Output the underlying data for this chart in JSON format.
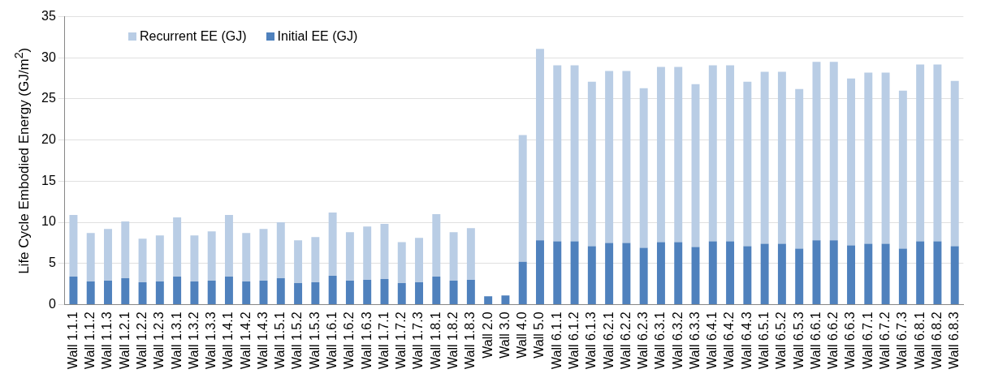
{
  "chart_data": {
    "type": "bar",
    "stacked": true,
    "ylabel": "Life Cycle Embodied Energy (GJ/m$^{2}$)",
    "categories": [
      "Wall 1.1.1",
      "Wall 1.1.2",
      "Wall 1.1.3",
      "Wall 1.2.1",
      "Wall 1.2.2",
      "Wall 1.2.3",
      "Wall 1.3.1",
      "Wall 1.3.2",
      "Wall 1.3.3",
      "Wall 1.4.1",
      "Wall 1.4.2",
      "Wall 1.4.3",
      "Wall 1.5.1",
      "Wall 1.5.2",
      "Wall 1.5.3",
      "Wall 1.6.1",
      "Wall 1.6.2",
      "Wall 1.6.3",
      "Wall 1.7.1",
      "Wall 1.7.2",
      "Wall 1.7.3",
      "Wall 1.8.1",
      "Wall 1.8.2",
      "Wall 1.8.3",
      "Wall 2.0",
      "Wall 3.0",
      "Wall 4.0",
      "Wall 5.0",
      "Wall 6.1.1",
      "Wall 6.1.2",
      "Wall 6.1.3",
      "Wall 6.2.1",
      "Wall 6.2.2",
      "Wall 6.2.3",
      "Wall 6.3.1",
      "Wall 6.3.2",
      "Wall 6.3.3",
      "Wall 6.4.1",
      "Wall 6.4.2",
      "Wall 6.4.3",
      "Wall 6.5.1",
      "Wall 6.5.2",
      "Wall 6.5.3",
      "Wall 6.6.1",
      "Wall 6.6.2",
      "Wall 6.6.3",
      "Wall 6.7.1",
      "Wall 6.7.2",
      "Wall 6.7.3",
      "Wall 6.8.1",
      "Wall 6.8.2",
      "Wall 6.8.3"
    ],
    "series": [
      {
        "name": "Initial EE (GJ)",
        "color": "#4f81bd",
        "values": [
          3.4,
          2.8,
          2.9,
          3.2,
          2.7,
          2.8,
          3.4,
          2.8,
          2.9,
          3.4,
          2.8,
          2.9,
          3.2,
          2.6,
          2.7,
          3.5,
          2.9,
          3.0,
          3.1,
          2.6,
          2.7,
          3.4,
          2.9,
          3.0,
          1.0,
          1.1,
          5.2,
          7.8,
          7.7,
          7.7,
          7.1,
          7.5,
          7.5,
          6.9,
          7.6,
          7.6,
          7.0,
          7.7,
          7.7,
          7.1,
          7.4,
          7.4,
          6.8,
          7.8,
          7.8,
          7.2,
          7.4,
          7.4,
          6.8,
          7.7,
          7.7,
          7.1
        ]
      },
      {
        "name": "Recurrent EE (GJ)",
        "color": "#b9cde5",
        "values": [
          7.5,
          5.9,
          6.3,
          6.9,
          5.3,
          5.6,
          7.2,
          5.6,
          6.0,
          7.5,
          5.9,
          6.3,
          6.8,
          5.2,
          5.5,
          7.7,
          5.9,
          6.5,
          6.7,
          5.0,
          5.4,
          7.6,
          5.9,
          6.3,
          0,
          0,
          15.4,
          23.3,
          21.4,
          21.4,
          20.0,
          20.9,
          20.9,
          19.4,
          21.3,
          21.3,
          19.8,
          21.4,
          21.4,
          20.0,
          20.9,
          20.9,
          19.4,
          21.7,
          21.7,
          20.3,
          20.8,
          20.8,
          19.2,
          21.5,
          21.5,
          20.1
        ]
      }
    ],
    "ylim": [
      0,
      35
    ],
    "yticks": [
      0,
      5,
      10,
      15,
      20,
      25,
      30,
      35
    ],
    "grid": "y",
    "legend": "top left"
  }
}
